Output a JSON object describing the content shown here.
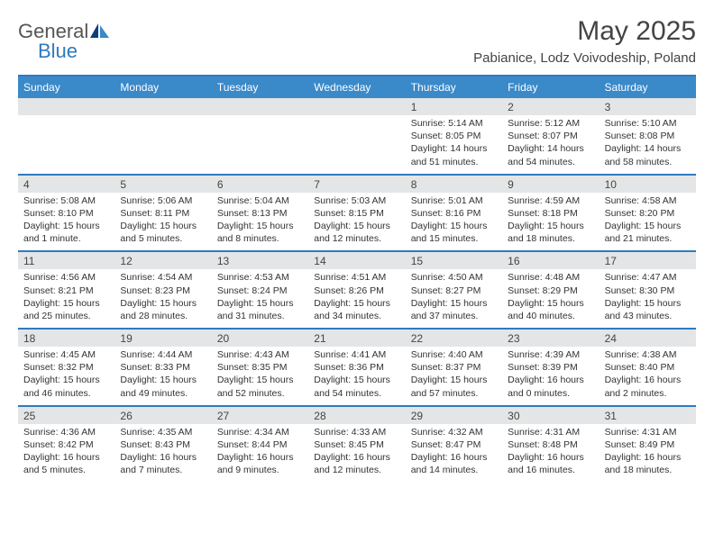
{
  "brand": {
    "general": "General",
    "blue": "Blue"
  },
  "title": "May 2025",
  "location": "Pabianice, Lodz Voivodeship, Poland",
  "weekdays": [
    "Sunday",
    "Monday",
    "Tuesday",
    "Wednesday",
    "Thursday",
    "Friday",
    "Saturday"
  ],
  "colors": {
    "header_bg": "#3a89c9",
    "rule": "#2f7ac0",
    "daynum_bg": "#e4e5e6",
    "text": "#333333",
    "logo_blue": "#2f7ac0",
    "logo_dark": "#0b3f78"
  },
  "weeks": [
    [
      null,
      null,
      null,
      null,
      {
        "n": "1",
        "sr": "Sunrise: 5:14 AM",
        "ss": "Sunset: 8:05 PM",
        "d1": "Daylight: 14 hours",
        "d2": "and 51 minutes."
      },
      {
        "n": "2",
        "sr": "Sunrise: 5:12 AM",
        "ss": "Sunset: 8:07 PM",
        "d1": "Daylight: 14 hours",
        "d2": "and 54 minutes."
      },
      {
        "n": "3",
        "sr": "Sunrise: 5:10 AM",
        "ss": "Sunset: 8:08 PM",
        "d1": "Daylight: 14 hours",
        "d2": "and 58 minutes."
      }
    ],
    [
      {
        "n": "4",
        "sr": "Sunrise: 5:08 AM",
        "ss": "Sunset: 8:10 PM",
        "d1": "Daylight: 15 hours",
        "d2": "and 1 minute."
      },
      {
        "n": "5",
        "sr": "Sunrise: 5:06 AM",
        "ss": "Sunset: 8:11 PM",
        "d1": "Daylight: 15 hours",
        "d2": "and 5 minutes."
      },
      {
        "n": "6",
        "sr": "Sunrise: 5:04 AM",
        "ss": "Sunset: 8:13 PM",
        "d1": "Daylight: 15 hours",
        "d2": "and 8 minutes."
      },
      {
        "n": "7",
        "sr": "Sunrise: 5:03 AM",
        "ss": "Sunset: 8:15 PM",
        "d1": "Daylight: 15 hours",
        "d2": "and 12 minutes."
      },
      {
        "n": "8",
        "sr": "Sunrise: 5:01 AM",
        "ss": "Sunset: 8:16 PM",
        "d1": "Daylight: 15 hours",
        "d2": "and 15 minutes."
      },
      {
        "n": "9",
        "sr": "Sunrise: 4:59 AM",
        "ss": "Sunset: 8:18 PM",
        "d1": "Daylight: 15 hours",
        "d2": "and 18 minutes."
      },
      {
        "n": "10",
        "sr": "Sunrise: 4:58 AM",
        "ss": "Sunset: 8:20 PM",
        "d1": "Daylight: 15 hours",
        "d2": "and 21 minutes."
      }
    ],
    [
      {
        "n": "11",
        "sr": "Sunrise: 4:56 AM",
        "ss": "Sunset: 8:21 PM",
        "d1": "Daylight: 15 hours",
        "d2": "and 25 minutes."
      },
      {
        "n": "12",
        "sr": "Sunrise: 4:54 AM",
        "ss": "Sunset: 8:23 PM",
        "d1": "Daylight: 15 hours",
        "d2": "and 28 minutes."
      },
      {
        "n": "13",
        "sr": "Sunrise: 4:53 AM",
        "ss": "Sunset: 8:24 PM",
        "d1": "Daylight: 15 hours",
        "d2": "and 31 minutes."
      },
      {
        "n": "14",
        "sr": "Sunrise: 4:51 AM",
        "ss": "Sunset: 8:26 PM",
        "d1": "Daylight: 15 hours",
        "d2": "and 34 minutes."
      },
      {
        "n": "15",
        "sr": "Sunrise: 4:50 AM",
        "ss": "Sunset: 8:27 PM",
        "d1": "Daylight: 15 hours",
        "d2": "and 37 minutes."
      },
      {
        "n": "16",
        "sr": "Sunrise: 4:48 AM",
        "ss": "Sunset: 8:29 PM",
        "d1": "Daylight: 15 hours",
        "d2": "and 40 minutes."
      },
      {
        "n": "17",
        "sr": "Sunrise: 4:47 AM",
        "ss": "Sunset: 8:30 PM",
        "d1": "Daylight: 15 hours",
        "d2": "and 43 minutes."
      }
    ],
    [
      {
        "n": "18",
        "sr": "Sunrise: 4:45 AM",
        "ss": "Sunset: 8:32 PM",
        "d1": "Daylight: 15 hours",
        "d2": "and 46 minutes."
      },
      {
        "n": "19",
        "sr": "Sunrise: 4:44 AM",
        "ss": "Sunset: 8:33 PM",
        "d1": "Daylight: 15 hours",
        "d2": "and 49 minutes."
      },
      {
        "n": "20",
        "sr": "Sunrise: 4:43 AM",
        "ss": "Sunset: 8:35 PM",
        "d1": "Daylight: 15 hours",
        "d2": "and 52 minutes."
      },
      {
        "n": "21",
        "sr": "Sunrise: 4:41 AM",
        "ss": "Sunset: 8:36 PM",
        "d1": "Daylight: 15 hours",
        "d2": "and 54 minutes."
      },
      {
        "n": "22",
        "sr": "Sunrise: 4:40 AM",
        "ss": "Sunset: 8:37 PM",
        "d1": "Daylight: 15 hours",
        "d2": "and 57 minutes."
      },
      {
        "n": "23",
        "sr": "Sunrise: 4:39 AM",
        "ss": "Sunset: 8:39 PM",
        "d1": "Daylight: 16 hours",
        "d2": "and 0 minutes."
      },
      {
        "n": "24",
        "sr": "Sunrise: 4:38 AM",
        "ss": "Sunset: 8:40 PM",
        "d1": "Daylight: 16 hours",
        "d2": "and 2 minutes."
      }
    ],
    [
      {
        "n": "25",
        "sr": "Sunrise: 4:36 AM",
        "ss": "Sunset: 8:42 PM",
        "d1": "Daylight: 16 hours",
        "d2": "and 5 minutes."
      },
      {
        "n": "26",
        "sr": "Sunrise: 4:35 AM",
        "ss": "Sunset: 8:43 PM",
        "d1": "Daylight: 16 hours",
        "d2": "and 7 minutes."
      },
      {
        "n": "27",
        "sr": "Sunrise: 4:34 AM",
        "ss": "Sunset: 8:44 PM",
        "d1": "Daylight: 16 hours",
        "d2": "and 9 minutes."
      },
      {
        "n": "28",
        "sr": "Sunrise: 4:33 AM",
        "ss": "Sunset: 8:45 PM",
        "d1": "Daylight: 16 hours",
        "d2": "and 12 minutes."
      },
      {
        "n": "29",
        "sr": "Sunrise: 4:32 AM",
        "ss": "Sunset: 8:47 PM",
        "d1": "Daylight: 16 hours",
        "d2": "and 14 minutes."
      },
      {
        "n": "30",
        "sr": "Sunrise: 4:31 AM",
        "ss": "Sunset: 8:48 PM",
        "d1": "Daylight: 16 hours",
        "d2": "and 16 minutes."
      },
      {
        "n": "31",
        "sr": "Sunrise: 4:31 AM",
        "ss": "Sunset: 8:49 PM",
        "d1": "Daylight: 16 hours",
        "d2": "and 18 minutes."
      }
    ]
  ]
}
